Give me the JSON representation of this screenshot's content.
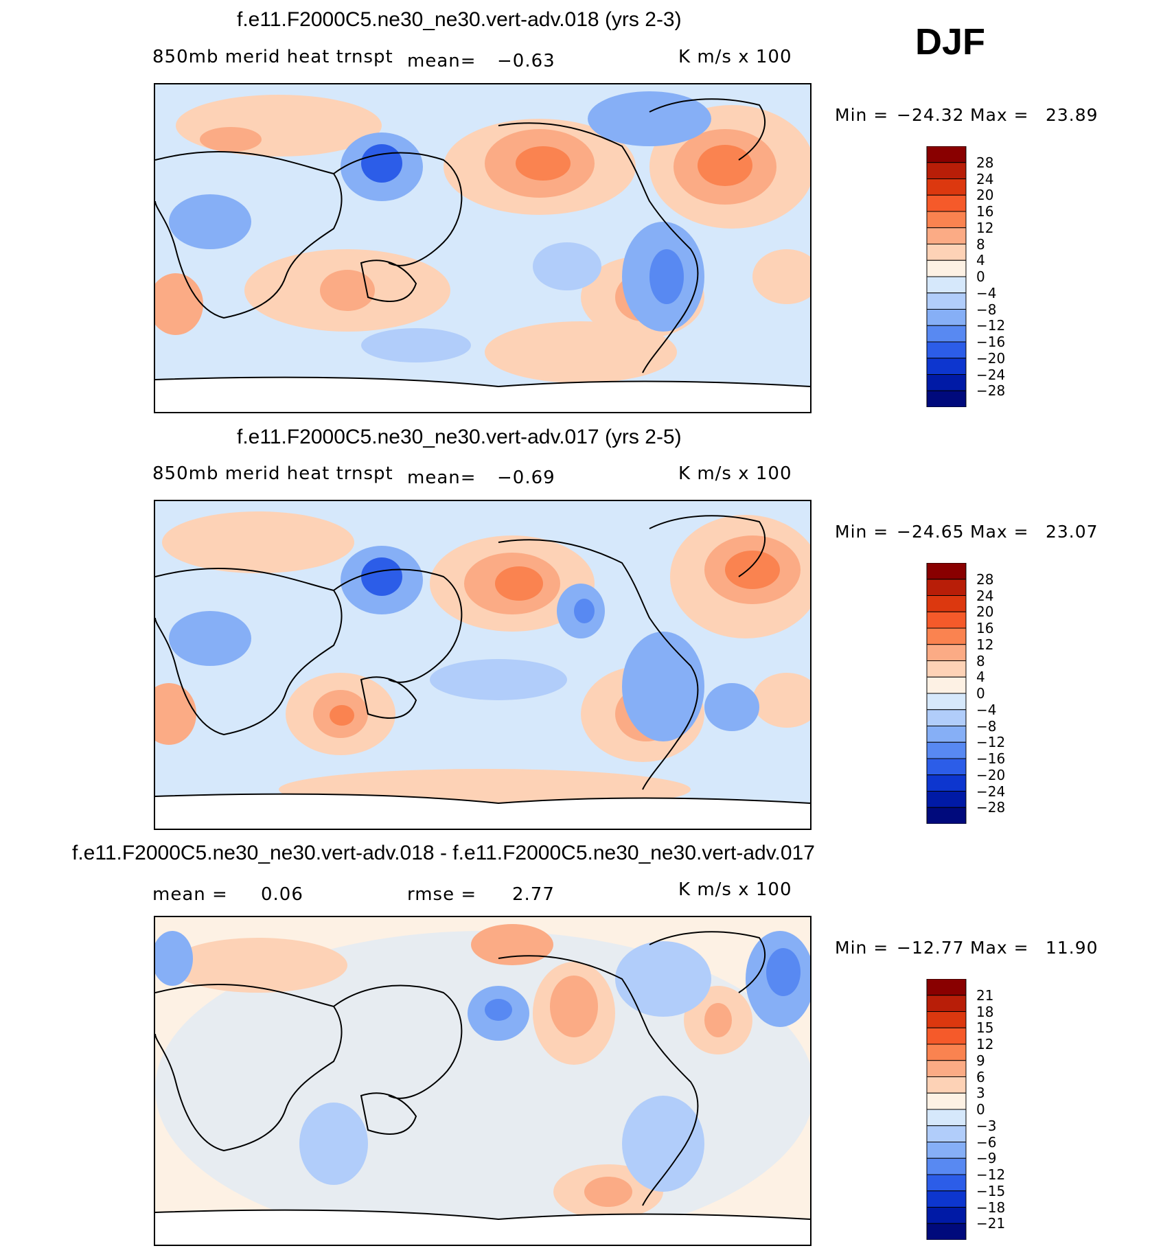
{
  "season": "DJF",
  "panels": [
    {
      "title": "f.e11.F2000C5.ne30_ne30.vert-adv.018 (yrs 2-3)",
      "variable": "850mb merid heat trnspt",
      "mean_label": "mean=",
      "mean_value": "−0.63",
      "units": "K m/s x 100",
      "min_label": "Min =",
      "min_value": "−24.32",
      "max_label": "Max =",
      "max_value": "23.89",
      "colorbar_labels": [
        "28",
        "24",
        "20",
        "16",
        "12",
        "8",
        "4",
        "0",
        "−4",
        "−8",
        "−12",
        "−16",
        "−20",
        "−24",
        "−28"
      ]
    },
    {
      "title": "f.e11.F2000C5.ne30_ne30.vert-adv.017 (yrs 2-5)",
      "variable": "850mb merid heat trnspt",
      "mean_label": "mean=",
      "mean_value": "−0.69",
      "units": "K m/s x 100",
      "min_label": "Min =",
      "min_value": "−24.65",
      "max_label": "Max =",
      "max_value": "23.07",
      "colorbar_labels": [
        "28",
        "24",
        "20",
        "16",
        "12",
        "8",
        "4",
        "0",
        "−4",
        "−8",
        "−12",
        "−16",
        "−20",
        "−24",
        "−28"
      ]
    },
    {
      "title": "f.e11.F2000C5.ne30_ne30.vert-adv.018 - f.e11.F2000C5.ne30_ne30.vert-adv.017",
      "mean_label": "mean =",
      "mean_value": "0.06",
      "rmse_label": "rmse =",
      "rmse_value": "2.77",
      "units": "K m/s x 100",
      "min_label": "Min =",
      "min_value": "−12.77",
      "max_label": "Max =",
      "max_value": "11.90",
      "colorbar_labels": [
        "21",
        "18",
        "15",
        "12",
        "9",
        "6",
        "3",
        "0",
        "−3",
        "−6",
        "−9",
        "−12",
        "−15",
        "−18",
        "−21"
      ]
    }
  ],
  "colorbar_colors": [
    "#890000",
    "#b81e08",
    "#dc380f",
    "#f55a2a",
    "#fa8350",
    "#fbab85",
    "#fdd2b6",
    "#fdf1e4",
    "#d6e8fb",
    "#b1cdfa",
    "#86aff6",
    "#5889f2",
    "#2c5de8",
    "#0d36cf",
    "#001aa6",
    "#000a7c"
  ],
  "chart_data": [
    {
      "type": "heatmap",
      "title": "f.e11.F2000C5.ne30_ne30.vert-adv.018 (yrs 2-3)",
      "variable": "850mb merid heat trnspt",
      "units": "K m/s x 100",
      "mean": -0.63,
      "min": -24.32,
      "max": 23.89,
      "levels": [
        -28,
        -24,
        -20,
        -16,
        -12,
        -8,
        -4,
        0,
        4,
        8,
        12,
        16,
        20,
        24,
        28
      ]
    },
    {
      "type": "heatmap",
      "title": "f.e11.F2000C5.ne30_ne30.vert-adv.017 (yrs 2-5)",
      "variable": "850mb merid heat trnspt",
      "units": "K m/s x 100",
      "mean": -0.69,
      "min": -24.65,
      "max": 23.07,
      "levels": [
        -28,
        -24,
        -20,
        -16,
        -12,
        -8,
        -4,
        0,
        4,
        8,
        12,
        16,
        20,
        24,
        28
      ]
    },
    {
      "type": "heatmap",
      "title": "f.e11.F2000C5.ne30_ne30.vert-adv.018 - f.e11.F2000C5.ne30_ne30.vert-adv.017",
      "units": "K m/s x 100",
      "mean": 0.06,
      "rmse": 2.77,
      "min": -12.77,
      "max": 11.9,
      "levels": [
        -21,
        -18,
        -15,
        -12,
        -9,
        -6,
        -3,
        0,
        3,
        6,
        9,
        12,
        15,
        18,
        21
      ]
    }
  ]
}
